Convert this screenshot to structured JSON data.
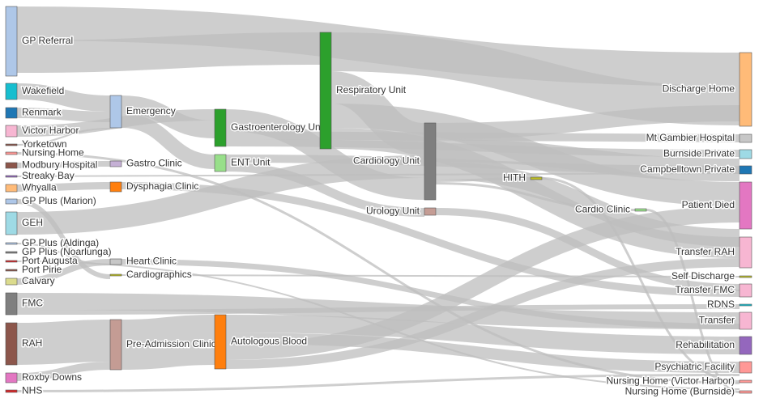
{
  "nodes": [
    {
      "label": "GP Referral",
      "color": "#aec7e8"
    },
    {
      "label": "Wakefield",
      "color": "#17becf"
    },
    {
      "label": "Renmark",
      "color": "#1f77b4"
    },
    {
      "label": "Victor Harbor",
      "color": "#f7b6d2"
    },
    {
      "label": "Yorketown",
      "color": "#8c564b"
    },
    {
      "label": "Nursing Home",
      "color": "#ff9896"
    },
    {
      "label": "Modbury Hospital",
      "color": "#8c564b"
    },
    {
      "label": "Streaky Bay",
      "color": "#9467bd"
    },
    {
      "label": "Whyalla",
      "color": "#ffbb78"
    },
    {
      "label": "GP Plus (Marion)",
      "color": "#aec7e8"
    },
    {
      "label": "GEH",
      "color": "#9edae5"
    },
    {
      "label": "GP Plus (Aldinga)",
      "color": "#aec7e8"
    },
    {
      "label": "GP Plus (Noarlunga)",
      "color": "#7f7f7f"
    },
    {
      "label": "Port Augusta",
      "color": "#d62728"
    },
    {
      "label": "Port Pirie",
      "color": "#8c564b"
    },
    {
      "label": "Calvary",
      "color": "#dbdb8d"
    },
    {
      "label": "FMC",
      "color": "#7f7f7f"
    },
    {
      "label": "RAH",
      "color": "#8c564b"
    },
    {
      "label": "Roxby Downs",
      "color": "#e377c2"
    },
    {
      "label": "NHS",
      "color": "#d62728"
    },
    {
      "label": "Emergency",
      "color": "#aec7e8"
    },
    {
      "label": "Gastro Clinic",
      "color": "#c5b0d5"
    },
    {
      "label": "Dysphagia Clinic",
      "color": "#ff7f0e"
    },
    {
      "label": "Heart Clinic",
      "color": "#c7c7c7"
    },
    {
      "label": "Cardiographics",
      "color": "#bcbd22"
    },
    {
      "label": "Pre-Admission Clinic",
      "color": "#c49c94"
    },
    {
      "label": "Gastroenterology Unit",
      "color": "#2ca02c"
    },
    {
      "label": "ENT Unit",
      "color": "#98df8a"
    },
    {
      "label": "Autologous Blood",
      "color": "#ff7f0e"
    },
    {
      "label": "Respiratory Unit",
      "color": "#2ca02c"
    },
    {
      "label": "Cardiology Unit",
      "color": "#7f7f7f"
    },
    {
      "label": "Urology Unit",
      "color": "#c49c94"
    },
    {
      "label": "HITH",
      "color": "#bcbd22"
    },
    {
      "label": "Cardio Clinic",
      "color": "#98df8a"
    },
    {
      "label": "Discharge Home",
      "color": "#ffbb78"
    },
    {
      "label": "Mt Gambier Hospital",
      "color": "#c7c7c7"
    },
    {
      "label": "Burnside Private",
      "color": "#9edae5"
    },
    {
      "label": "Campbelltown Private",
      "color": "#1f77b4"
    },
    {
      "label": "Patient Died",
      "color": "#e377c2"
    },
    {
      "label": "Transfer RAH",
      "color": "#f7b6d2"
    },
    {
      "label": "Self Discharge",
      "color": "#bcbd22"
    },
    {
      "label": "Transfer FMC",
      "color": "#f7b6d2"
    },
    {
      "label": "RDNS",
      "color": "#17becf"
    },
    {
      "label": "Transfer",
      "color": "#f7b6d2"
    },
    {
      "label": "Rehabilitation",
      "color": "#9467bd"
    },
    {
      "label": "Psychiatric Facility",
      "color": "#ff9896"
    },
    {
      "label": "Nursing Home (Victor Harbor)",
      "color": "#ff9896"
    },
    {
      "label": "Nursing Home (Burnside)",
      "color": "#ff9896"
    }
  ]
}
